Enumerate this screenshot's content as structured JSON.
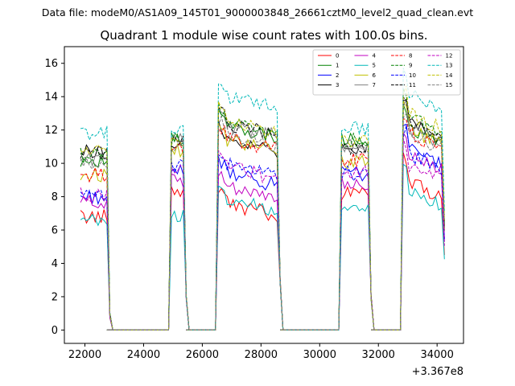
{
  "chart_data": {
    "type": "line",
    "suptitle": "Data file: modeM0/AS1A09_145T01_9000003848_26661cztM0_level2_quad_clean.evt",
    "title": "Quadrant 1 module wise count rates with 100.0s bins.",
    "xlabel": "",
    "ylabel": "",
    "x_offset_label": "+3.367e8",
    "xlim": [
      21300,
      34900
    ],
    "ylim": [
      -0.8,
      17
    ],
    "x_ticks": [
      22000,
      24000,
      26000,
      28000,
      30000,
      32000,
      34000
    ],
    "x_tick_labels": [
      "22000",
      "24000",
      "26000",
      "28000",
      "30000",
      "32000",
      "34000"
    ],
    "y_ticks": [
      0,
      2,
      4,
      6,
      8,
      10,
      12,
      14,
      16
    ],
    "y_tick_labels": [
      "0",
      "2",
      "4",
      "6",
      "8",
      "10",
      "12",
      "14",
      "16"
    ],
    "legend_location": "upper right",
    "legend_columns": 4,
    "segments": [
      {
        "start": 21850,
        "step": 100,
        "count": 10,
        "edge_after": [
          0.9,
          0.0
        ]
      },
      {
        "start": 24950,
        "step": 100,
        "count": 5,
        "edge_before": [
          0.0,
          6.5
        ],
        "edge_after": [
          2.0,
          0.0
        ]
      },
      {
        "start": 26550,
        "step": 100,
        "count": 21,
        "edge_before": [
          0.0,
          7.5
        ],
        "edge_after": [
          3.0,
          0.0
        ]
      },
      {
        "start": 30750,
        "step": 100,
        "count": 10,
        "edge_before": [
          0.0,
          6.5
        ],
        "edge_after": [
          2.0,
          0.0
        ]
      },
      {
        "start": 32850,
        "step": 100,
        "count": 15,
        "edge_before": [
          0.0,
          7.5
        ],
        "end_value_scale": 0.5
      }
    ],
    "zero_gaps": [
      [
        22750,
        24850
      ],
      [
        25450,
        26450
      ],
      [
        28650,
        30650
      ],
      [
        31750,
        32750
      ]
    ],
    "series": [
      {
        "name": "0",
        "color": "#ff0000",
        "dash": "solid",
        "levels": [
          6.8,
          8.4,
          7.7,
          8.2,
          9.0
        ]
      },
      {
        "name": "1",
        "color": "#008000",
        "dash": "solid",
        "levels": [
          10.2,
          11.4,
          12.4,
          11.4,
          12.3
        ]
      },
      {
        "name": "2",
        "color": "#0000ff",
        "dash": "solid",
        "levels": [
          8.0,
          9.5,
          9.5,
          9.4,
          11.0
        ]
      },
      {
        "name": "3",
        "color": "#000000",
        "dash": "solid",
        "levels": [
          10.7,
          11.3,
          11.6,
          11.0,
          12.5
        ]
      },
      {
        "name": "4",
        "color": "#c000c0",
        "dash": "solid",
        "levels": [
          7.7,
          8.9,
          8.8,
          8.8,
          10.6
        ]
      },
      {
        "name": "5",
        "color": "#00b8b8",
        "dash": "solid",
        "levels": [
          6.5,
          6.9,
          8.0,
          7.3,
          8.5
        ]
      },
      {
        "name": "6",
        "color": "#c0c000",
        "dash": "solid",
        "levels": [
          9.3,
          10.7,
          11.5,
          10.1,
          12.2
        ]
      },
      {
        "name": "7",
        "color": "#808080",
        "dash": "solid",
        "levels": [
          10.3,
          11.4,
          12.4,
          11.0,
          12.3
        ]
      },
      {
        "name": "8",
        "color": "#ff0000",
        "dash": "dashed",
        "levels": [
          9.3,
          10.8,
          11.6,
          10.2,
          11.9
        ]
      },
      {
        "name": "9",
        "color": "#008000",
        "dash": "dashed",
        "levels": [
          10.5,
          11.4,
          12.6,
          11.4,
          13.0
        ]
      },
      {
        "name": "10",
        "color": "#0000ff",
        "dash": "dashed",
        "levels": [
          8.0,
          9.8,
          10.0,
          9.4,
          10.7
        ]
      },
      {
        "name": "11",
        "color": "#000000",
        "dash": "dashed",
        "levels": [
          10.6,
          11.2,
          12.5,
          11.0,
          12.8
        ]
      },
      {
        "name": "12",
        "color": "#c000c0",
        "dash": "dashed",
        "levels": [
          8.1,
          9.5,
          9.9,
          9.4,
          10.1
        ]
      },
      {
        "name": "13",
        "color": "#00b8b8",
        "dash": "dashed",
        "levels": [
          11.8,
          12.0,
          14.2,
          12.1,
          14.3
        ]
      },
      {
        "name": "14",
        "color": "#c0c000",
        "dash": "dashed",
        "levels": [
          10.8,
          11.3,
          12.6,
          11.4,
          13.1
        ]
      },
      {
        "name": "15",
        "color": "#808080",
        "dash": "dashed",
        "levels": [
          9.9,
          11.1,
          11.9,
          10.6,
          11.9
        ]
      }
    ]
  }
}
